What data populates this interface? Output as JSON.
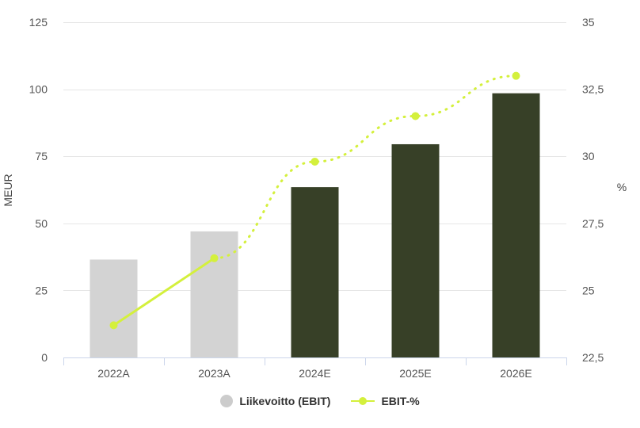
{
  "chart_data": {
    "type": "bar+line",
    "categories": [
      "2022A",
      "2023A",
      "2024E",
      "2025E",
      "2026E"
    ],
    "series": [
      {
        "name": "Liikevoitto (EBIT)",
        "type": "bar",
        "axis": "left",
        "values": [
          36.5,
          47,
          63.5,
          79.5,
          98.5
        ],
        "colors": [
          "#d3d3d3",
          "#d3d3d3",
          "#374027",
          "#374027",
          "#374027"
        ],
        "legend_color": "#cccccc"
      },
      {
        "name": "EBIT-%",
        "type": "line",
        "axis": "right",
        "values": [
          23.7,
          26.2,
          29.8,
          31.5,
          33.0
        ],
        "color": "#d4f03c",
        "solid_until_index": 1,
        "style_after": "dotted"
      }
    ],
    "yleft": {
      "label": "MEUR",
      "ylim": [
        0,
        125
      ],
      "ticks": [
        "0",
        "25",
        "50",
        "75",
        "100",
        "125"
      ]
    },
    "yright": {
      "label": "%",
      "ylim": [
        22.5,
        35
      ],
      "ticks": [
        "22,5",
        "25",
        "27,5",
        "30",
        "32,5",
        "35"
      ]
    },
    "grid": true,
    "legend_position": "bottom"
  }
}
